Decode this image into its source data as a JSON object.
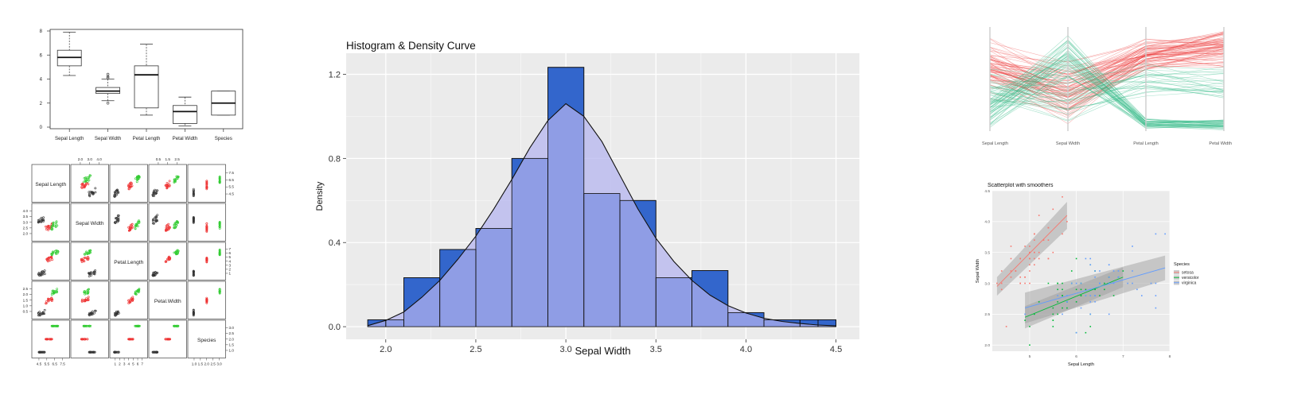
{
  "chart_data": [
    {
      "type": "box",
      "categories": [
        "Sepal Length",
        "Sepal Width",
        "Petal Length",
        "Petal Width",
        "Species"
      ],
      "boxes": [
        {
          "whisker_low": 4.3,
          "q1": 5.1,
          "median": 5.8,
          "q3": 6.4,
          "whisker_high": 7.9,
          "outliers": []
        },
        {
          "whisker_low": 2.2,
          "q1": 2.8,
          "median": 3.0,
          "q3": 3.3,
          "whisker_high": 4.0,
          "outliers": [
            4.4,
            4.2,
            4.1,
            2.0
          ]
        },
        {
          "whisker_low": 1.0,
          "q1": 1.6,
          "median": 4.35,
          "q3": 5.1,
          "whisker_high": 6.9,
          "outliers": []
        },
        {
          "whisker_low": 0.1,
          "q1": 0.3,
          "median": 1.3,
          "q3": 1.8,
          "whisker_high": 2.5,
          "outliers": []
        },
        {
          "whisker_low": 1.0,
          "q1": 1.0,
          "median": 2.0,
          "q3": 3.0,
          "whisker_high": 3.0,
          "outliers": []
        }
      ],
      "ylim": [
        0,
        8
      ],
      "yticks": [
        "0",
        "2",
        "4",
        "6",
        "8"
      ],
      "grid": false
    },
    {
      "type": "scatter_matrix",
      "variables": [
        "Sepal Length",
        "Sepal Width",
        "Petal.Length",
        "Petal.Width",
        "Species"
      ],
      "top_axis_ticks": {
        "col2": [
          "2.0",
          "3.0",
          "4.0"
        ],
        "col4": [
          "0.5",
          "1.5",
          "2.5"
        ]
      },
      "bottom_axis_ticks": {
        "col1": [
          "4.5",
          "5.5",
          "6.5",
          "7.5"
        ],
        "col3": [
          "1",
          "2",
          "3",
          "4",
          "5",
          "6",
          "7"
        ],
        "col5": [
          "1.0",
          "1.5",
          "2.0",
          "2.5",
          "3.0"
        ]
      },
      "left_axis_ticks": {
        "row2": [
          "2.0",
          "2.5",
          "3.0",
          "3.5",
          "4.0"
        ],
        "row4": [
          "0.5",
          "1.0",
          "1.5",
          "2.0",
          "2.5"
        ]
      },
      "right_axis_ticks": {
        "row1": [
          "4.5",
          "5.5",
          "6.5",
          "7.5"
        ],
        "row3": [
          "1",
          "2",
          "3",
          "4",
          "5",
          "6",
          "7"
        ],
        "row5": [
          "1.0",
          "1.5",
          "2.0",
          "2.5",
          "3.0"
        ]
      },
      "colors": [
        "#333333",
        "#ee3333",
        "#33cc33"
      ],
      "group_means": {
        "Sepal Length": [
          5.0,
          5.9,
          6.6
        ],
        "Sepal Width": [
          3.4,
          2.8,
          3.0
        ],
        "Petal.Length": [
          1.5,
          4.3,
          5.6
        ],
        "Petal.Width": [
          0.25,
          1.3,
          2.0
        ],
        "Species": [
          1,
          2,
          3
        ]
      }
    },
    {
      "type": "bar",
      "title": "Histogram & Density Curve",
      "xlabel": "Sepal Width",
      "ylabel": "Density",
      "bins": [
        {
          "x0": 1.9,
          "x1": 2.0,
          "density": 0.033
        },
        {
          "x0": 2.0,
          "x1": 2.1,
          "density": 0.033
        },
        {
          "x0": 2.1,
          "x1": 2.3,
          "density": 0.233
        },
        {
          "x0": 2.3,
          "x1": 2.5,
          "density": 0.367
        },
        {
          "x0": 2.5,
          "x1": 2.7,
          "density": 0.467
        },
        {
          "x0": 2.7,
          "x1": 2.9,
          "density": 0.8
        },
        {
          "x0": 2.9,
          "x1": 3.1,
          "density": 1.233
        },
        {
          "x0": 3.1,
          "x1": 3.3,
          "density": 0.633
        },
        {
          "x0": 3.3,
          "x1": 3.5,
          "density": 0.6
        },
        {
          "x0": 3.5,
          "x1": 3.7,
          "density": 0.233
        },
        {
          "x0": 3.7,
          "x1": 3.9,
          "density": 0.267
        },
        {
          "x0": 3.9,
          "x1": 4.1,
          "density": 0.067
        },
        {
          "x0": 4.1,
          "x1": 4.3,
          "density": 0.033
        },
        {
          "x0": 4.3,
          "x1": 4.4,
          "density": 0.033
        },
        {
          "x0": 4.4,
          "x1": 4.5,
          "density": 0.033
        }
      ],
      "density_curve": {
        "x": [
          1.9,
          2.0,
          2.1,
          2.2,
          2.3,
          2.4,
          2.5,
          2.6,
          2.7,
          2.8,
          2.9,
          3.0,
          3.1,
          3.2,
          3.3,
          3.4,
          3.5,
          3.6,
          3.7,
          3.8,
          3.9,
          4.0,
          4.1,
          4.2,
          4.3,
          4.4,
          4.5
        ],
        "y": [
          0.005,
          0.03,
          0.07,
          0.14,
          0.22,
          0.32,
          0.43,
          0.56,
          0.7,
          0.85,
          0.98,
          1.06,
          1.0,
          0.88,
          0.72,
          0.56,
          0.42,
          0.31,
          0.22,
          0.15,
          0.1,
          0.065,
          0.04,
          0.025,
          0.015,
          0.008,
          0.004
        ]
      },
      "xlim": [
        1.78,
        4.63
      ],
      "ylim": [
        -0.06,
        1.3
      ],
      "xticks": [
        "2.0",
        "2.5",
        "3.0",
        "3.5",
        "4.0",
        "4.5"
      ],
      "yticks": [
        "0.0",
        "0.4",
        "0.8",
        "1.2"
      ],
      "bar_color": "#3366cc",
      "density_fill": "#b3b3ee",
      "grid": true,
      "background": "#ebebeb"
    },
    {
      "type": "parallel_coordinates",
      "axes": [
        "Sepal Length",
        "Sepal Width",
        "Petal Length",
        "Petal Width"
      ],
      "colors": [
        "#ee4444",
        "#33bb88"
      ],
      "grid": false
    },
    {
      "type": "scatter",
      "title": "Scatterplot with smoothers",
      "xlabel": "Sepal Length",
      "ylabel": "Sepal Width",
      "xlim": [
        4.2,
        8.0
      ],
      "ylim": [
        1.9,
        4.5
      ],
      "xticks": [
        "5",
        "6",
        "7",
        "8"
      ],
      "yticks": [
        "2.0",
        "2.5",
        "3.0",
        "3.5",
        "4.0",
        "4.5"
      ],
      "legend_title": "Species",
      "legend_position": "right",
      "series": [
        {
          "name": "setosa",
          "color": "#f8766d",
          "points": [
            [
              4.3,
              3.0
            ],
            [
              4.4,
              2.9
            ],
            [
              4.4,
              3.0
            ],
            [
              4.4,
              3.2
            ],
            [
              4.5,
              2.3
            ],
            [
              4.6,
              3.1
            ],
            [
              4.6,
              3.4
            ],
            [
              4.6,
              3.6
            ],
            [
              4.6,
              3.2
            ],
            [
              4.7,
              3.2
            ],
            [
              4.7,
              3.2
            ],
            [
              4.8,
              3.4
            ],
            [
              4.8,
              3.0
            ],
            [
              4.8,
              3.4
            ],
            [
              4.8,
              3.1
            ],
            [
              4.8,
              3.0
            ],
            [
              4.9,
              3.0
            ],
            [
              4.9,
              3.1
            ],
            [
              4.9,
              3.6
            ],
            [
              4.9,
              3.1
            ],
            [
              5.0,
              3.6
            ],
            [
              5.0,
              3.4
            ],
            [
              5.0,
              3.0
            ],
            [
              5.0,
              3.4
            ],
            [
              5.0,
              3.2
            ],
            [
              5.0,
              3.5
            ],
            [
              5.0,
              3.5
            ],
            [
              5.0,
              3.3
            ],
            [
              5.1,
              3.5
            ],
            [
              5.1,
              3.5
            ],
            [
              5.1,
              3.8
            ],
            [
              5.1,
              3.8
            ],
            [
              5.1,
              3.7
            ],
            [
              5.1,
              3.3
            ],
            [
              5.1,
              3.4
            ],
            [
              5.1,
              3.8
            ],
            [
              5.2,
              3.5
            ],
            [
              5.2,
              3.4
            ],
            [
              5.2,
              4.1
            ],
            [
              5.3,
              3.7
            ],
            [
              5.4,
              3.9
            ],
            [
              5.4,
              3.7
            ],
            [
              5.4,
              3.9
            ],
            [
              5.4,
              3.4
            ],
            [
              5.4,
              3.4
            ],
            [
              5.5,
              4.2
            ],
            [
              5.5,
              3.5
            ],
            [
              5.7,
              4.4
            ],
            [
              5.7,
              3.8
            ],
            [
              5.8,
              4.0
            ]
          ],
          "fit": [
            [
              4.3,
              2.95
            ],
            [
              5.8,
              4.1
            ]
          ],
          "band": [
            0.15,
            0.22
          ]
        },
        {
          "name": "versicolor",
          "color": "#00ba38",
          "points": [
            [
              4.9,
              2.4
            ],
            [
              5.0,
              2.0
            ],
            [
              5.0,
              2.3
            ],
            [
              5.1,
              2.5
            ],
            [
              5.2,
              2.7
            ],
            [
              5.4,
              3.0
            ],
            [
              5.5,
              2.3
            ],
            [
              5.5,
              2.4
            ],
            [
              5.5,
              2.4
            ],
            [
              5.5,
              2.5
            ],
            [
              5.5,
              2.6
            ],
            [
              5.6,
              2.9
            ],
            [
              5.6,
              3.0
            ],
            [
              5.6,
              2.5
            ],
            [
              5.6,
              2.7
            ],
            [
              5.6,
              3.0
            ],
            [
              5.7,
              2.8
            ],
            [
              5.7,
              2.6
            ],
            [
              5.7,
              3.0
            ],
            [
              5.7,
              2.9
            ],
            [
              5.7,
              2.8
            ],
            [
              5.8,
              2.7
            ],
            [
              5.8,
              2.7
            ],
            [
              5.8,
              2.6
            ],
            [
              5.9,
              3.0
            ],
            [
              5.9,
              3.2
            ],
            [
              6.0,
              2.2
            ],
            [
              6.0,
              2.9
            ],
            [
              6.0,
              2.7
            ],
            [
              6.0,
              3.4
            ],
            [
              6.1,
              2.9
            ],
            [
              6.1,
              2.8
            ],
            [
              6.1,
              2.8
            ],
            [
              6.1,
              3.0
            ],
            [
              6.2,
              2.2
            ],
            [
              6.2,
              2.9
            ],
            [
              6.3,
              3.3
            ],
            [
              6.3,
              2.5
            ],
            [
              6.3,
              2.3
            ],
            [
              6.4,
              3.2
            ],
            [
              6.4,
              2.9
            ],
            [
              6.5,
              2.8
            ],
            [
              6.6,
              2.9
            ],
            [
              6.6,
              3.0
            ],
            [
              6.7,
              3.1
            ],
            [
              6.7,
              3.0
            ],
            [
              6.7,
              3.1
            ],
            [
              6.8,
              2.8
            ],
            [
              6.9,
              3.1
            ],
            [
              7.0,
              3.2
            ]
          ],
          "fit": [
            [
              4.9,
              2.45
            ],
            [
              7.0,
              3.1
            ]
          ],
          "band": [
            0.18,
            0.16
          ]
        },
        {
          "name": "virginica",
          "color": "#619cff",
          "points": [
            [
              4.9,
              2.5
            ],
            [
              5.6,
              2.8
            ],
            [
              5.7,
              2.5
            ],
            [
              5.8,
              2.7
            ],
            [
              5.8,
              2.8
            ],
            [
              5.8,
              2.7
            ],
            [
              5.9,
              3.0
            ],
            [
              6.0,
              2.2
            ],
            [
              6.0,
              3.0
            ],
            [
              6.1,
              3.0
            ],
            [
              6.1,
              2.6
            ],
            [
              6.2,
              2.8
            ],
            [
              6.2,
              3.4
            ],
            [
              6.3,
              3.3
            ],
            [
              6.3,
              2.9
            ],
            [
              6.3,
              2.7
            ],
            [
              6.3,
              2.8
            ],
            [
              6.3,
              3.4
            ],
            [
              6.3,
              2.5
            ],
            [
              6.4,
              2.7
            ],
            [
              6.4,
              3.2
            ],
            [
              6.4,
              2.8
            ],
            [
              6.4,
              2.8
            ],
            [
              6.4,
              3.1
            ],
            [
              6.5,
              3.0
            ],
            [
              6.5,
              3.2
            ],
            [
              6.5,
              3.0
            ],
            [
              6.5,
              3.0
            ],
            [
              6.7,
              2.5
            ],
            [
              6.7,
              3.3
            ],
            [
              6.7,
              3.1
            ],
            [
              6.7,
              3.0
            ],
            [
              6.7,
              3.3
            ],
            [
              6.8,
              3.0
            ],
            [
              6.8,
              3.2
            ],
            [
              6.9,
              3.2
            ],
            [
              6.9,
              3.1
            ],
            [
              6.9,
              3.1
            ],
            [
              7.1,
              3.0
            ],
            [
              7.2,
              3.6
            ],
            [
              7.2,
              3.2
            ],
            [
              7.2,
              3.0
            ],
            [
              7.3,
              2.9
            ],
            [
              7.4,
              2.8
            ],
            [
              7.6,
              3.0
            ],
            [
              7.7,
              3.8
            ],
            [
              7.7,
              2.6
            ],
            [
              7.7,
              2.8
            ],
            [
              7.7,
              3.0
            ],
            [
              7.9,
              3.8
            ]
          ],
          "fit": [
            [
              4.9,
              2.6
            ],
            [
              7.9,
              3.25
            ]
          ],
          "band": [
            0.25,
            0.2
          ]
        }
      ],
      "background": "#ebebeb",
      "grid": true
    }
  ]
}
